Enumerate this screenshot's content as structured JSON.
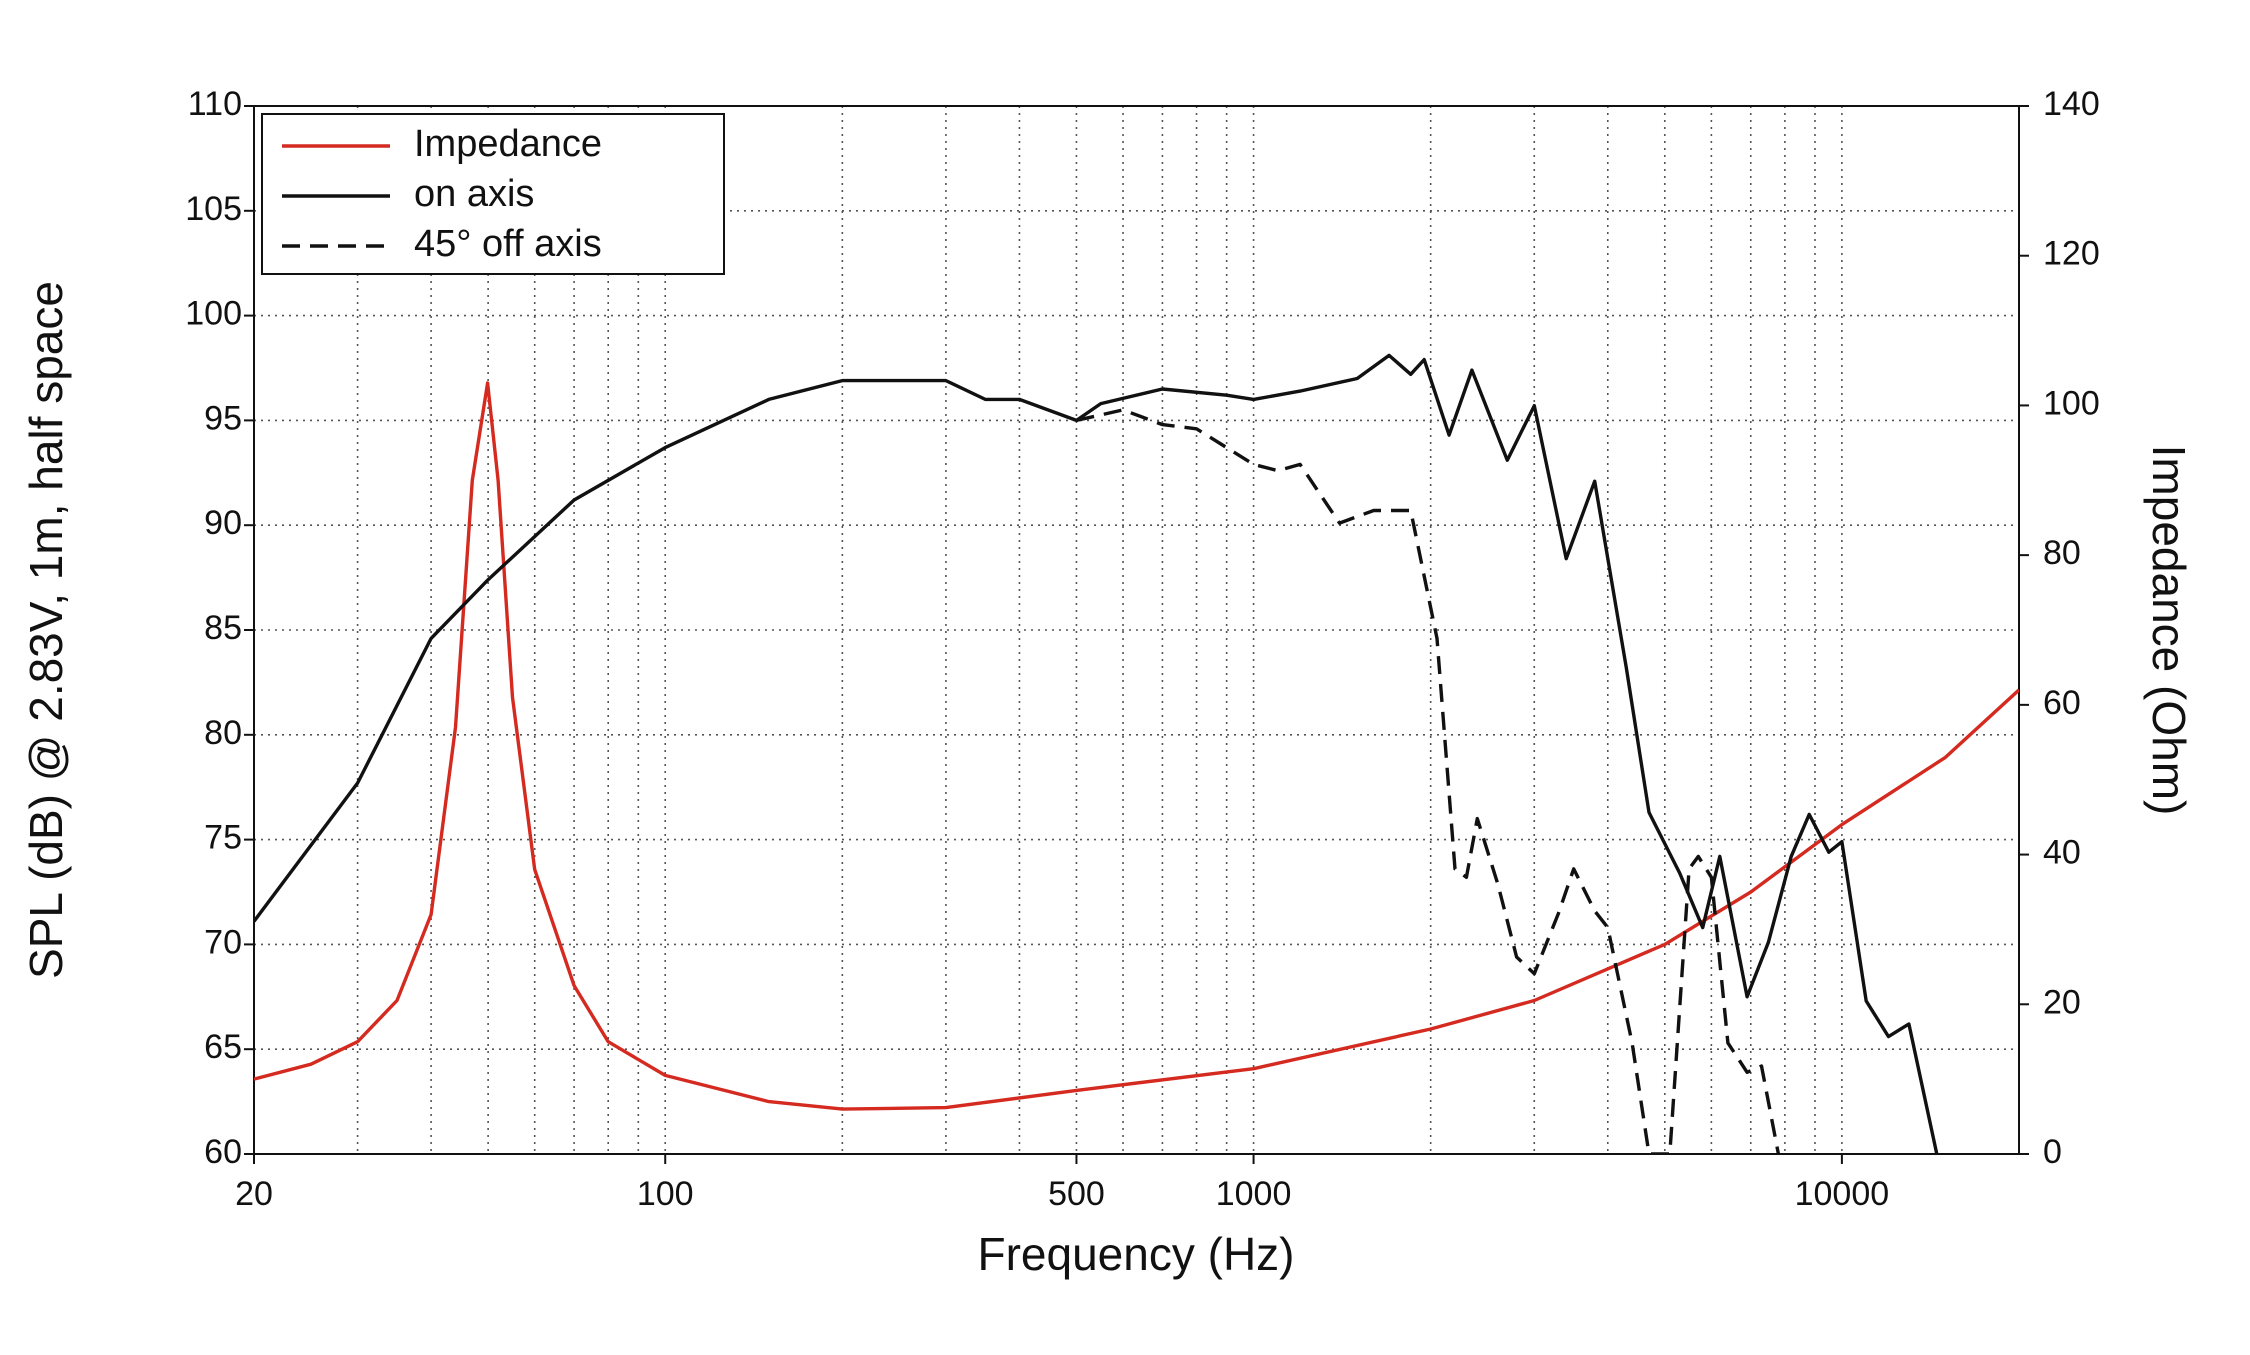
{
  "chart_data": {
    "type": "line",
    "x_label": "Frequency (Hz)",
    "y_label": "SPL (dB) @ 2.83V, 1m, half space",
    "y2_label": "Impedance (Ohm)",
    "xlog": true,
    "grid": true,
    "legend": "upper left",
    "xlim": [
      20,
      20000
    ],
    "xticks": [
      20,
      100,
      500,
      1000,
      10000
    ],
    "x_minor_ticks": [
      30,
      40,
      50,
      60,
      70,
      80,
      90,
      200,
      300,
      400,
      600,
      700,
      800,
      900,
      2000,
      3000,
      4000,
      5000,
      6000,
      7000,
      8000,
      9000
    ],
    "ylim": [
      60,
      110
    ],
    "yticks": [
      60,
      65,
      70,
      75,
      80,
      85,
      90,
      95,
      100,
      105,
      110
    ],
    "y2lim": [
      0,
      140
    ],
    "y2ticks": [
      0,
      20,
      40,
      60,
      80,
      100,
      120,
      140
    ],
    "series": [
      {
        "name": "Impedance",
        "color": "#d42a20",
        "dash": false,
        "axis": "y2",
        "x": [
          20,
          25,
          30,
          35,
          40,
          44,
          47,
          49.9,
          52,
          55,
          60,
          70,
          80,
          100,
          150,
          200,
          300,
          500,
          1000,
          2000,
          3000,
          5000,
          7000,
          10000,
          15000,
          20000
        ],
        "values": [
          10,
          12,
          15,
          20.5,
          32,
          57,
          90,
          103,
          90,
          61,
          38,
          22.5,
          15,
          10.5,
          7,
          6,
          6.2,
          8.5,
          11.4,
          16.7,
          20.5,
          28,
          35,
          44,
          53,
          62
        ]
      },
      {
        "name": "on axis",
        "color": "#111111",
        "dash": false,
        "x": [
          20,
          30,
          40,
          50,
          70,
          100,
          150,
          200,
          300,
          350,
          400,
          500,
          550,
          700,
          900,
          1000,
          1200,
          1500,
          1700,
          1850,
          1950,
          2150,
          2350,
          2700,
          3000,
          3400,
          3800,
          4300,
          4700,
          5300,
          5800,
          6200,
          6900,
          7500,
          8200,
          8800,
          9500,
          10000,
          11000,
          12000,
          13000,
          14500
        ],
        "values": [
          71.1,
          77.7,
          84.6,
          87.4,
          91.2,
          93.7,
          96,
          96.9,
          96.9,
          96,
          96,
          95,
          95.8,
          96.5,
          96.2,
          96,
          96.4,
          97,
          98.1,
          97.2,
          97.9,
          94.3,
          97.4,
          93.1,
          95.7,
          88.4,
          92.1,
          83.2,
          76.3,
          73.4,
          70.8,
          74.2,
          67.5,
          70.1,
          74.2,
          76.2,
          74.4,
          74.9,
          67.3,
          65.6,
          66.2,
          60
        ]
      },
      {
        "name": "45° off axis",
        "color": "#111111",
        "dash": true,
        "x": [
          500,
          600,
          700,
          800,
          1000,
          1100,
          1200,
          1400,
          1600,
          1850,
          2050,
          2200,
          2300,
          2400,
          2600,
          2800,
          3000,
          3300,
          3500,
          3800,
          4000,
          4400,
          4700,
          5100,
          5500,
          5700,
          6000,
          6400,
          6900,
          7300,
          7800
        ],
        "values": [
          95,
          95.5,
          94.8,
          94.6,
          92.9,
          92.6,
          92.9,
          90.1,
          90.7,
          90.7,
          84.6,
          73.6,
          73.2,
          76,
          72.9,
          69.4,
          68.6,
          71.5,
          73.6,
          71.6,
          70.8,
          65.3,
          60,
          60,
          73.6,
          74.2,
          73.2,
          65.3,
          63.9,
          64.2,
          60
        ]
      }
    ]
  }
}
